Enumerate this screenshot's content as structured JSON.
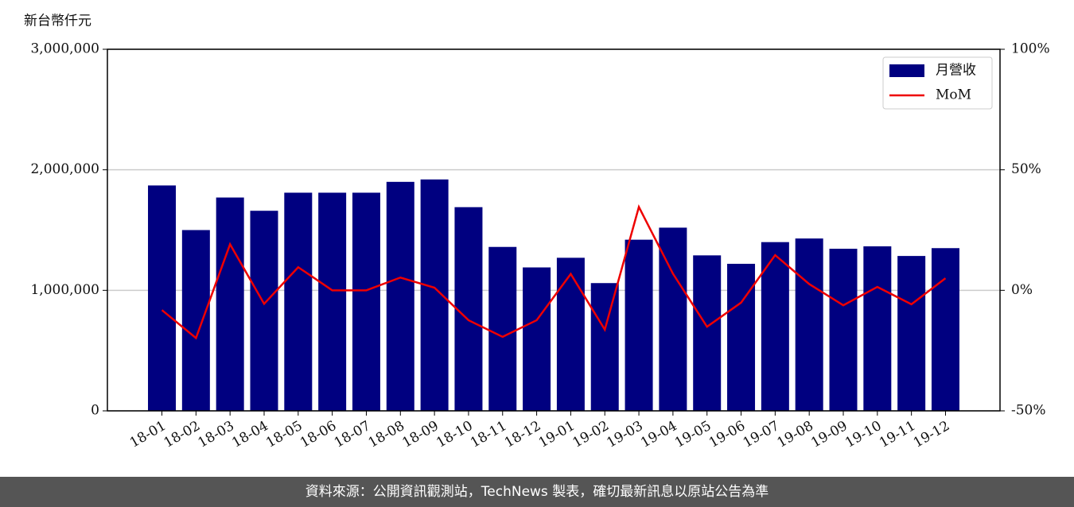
{
  "chart_data": {
    "type": "bar_line",
    "y_label": "新台幣仟元",
    "categories": [
      "18-01",
      "18-02",
      "18-03",
      "18-04",
      "18-05",
      "18-06",
      "18-07",
      "18-08",
      "18-09",
      "18-10",
      "18-11",
      "18-12",
      "19-01",
      "19-02",
      "19-03",
      "19-04",
      "19-05",
      "19-06",
      "19-07",
      "19-08",
      "19-09",
      "19-10",
      "19-11",
      "19-12"
    ],
    "series": [
      {
        "name": "月營收",
        "color": "#000080",
        "kind": "bar",
        "values": [
          1870000,
          1500000,
          1770000,
          1660000,
          1810000,
          1810000,
          1810000,
          1900000,
          1920000,
          1690000,
          1360000,
          1190000,
          1270000,
          1060000,
          1420000,
          1520000,
          1290000,
          1220000,
          1400000,
          1430000,
          1345000,
          1365000,
          1285000,
          1350000
        ]
      },
      {
        "name": "MoM",
        "color": "#ee0000",
        "kind": "line",
        "axis": "y2",
        "values": [
          -8.2,
          -19.8,
          19.1,
          -5.6,
          9.6,
          0,
          0,
          5.3,
          1.1,
          -12.4,
          -19.3,
          -12.4,
          6.8,
          -16.3,
          34.6,
          6.9,
          -15.1,
          -5.1,
          14.6,
          2.6,
          -6.2,
          1.4,
          -5.8,
          5.0
        ]
      }
    ],
    "ylim": [
      0,
      3000000
    ],
    "yticks": [
      0,
      {
        "value": 1000000,
        "label": "1,000,000"
      },
      {
        "value": 2000000,
        "label": "2,000,000"
      },
      {
        "value": 3000000,
        "label": "3,000,000"
      }
    ],
    "y2lim": [
      -50,
      100
    ],
    "y2ticks": [
      {
        "value": -50,
        "label": "-50%"
      },
      {
        "value": 0,
        "label": "0%"
      },
      {
        "value": 50,
        "label": "50%"
      },
      {
        "value": 100,
        "label": "100%"
      }
    ],
    "grid": true,
    "legend": "upper right"
  },
  "footer": "資料來源：公開資訊觀測站，TechNews 製表，確切最新訊息以原站公告為準"
}
